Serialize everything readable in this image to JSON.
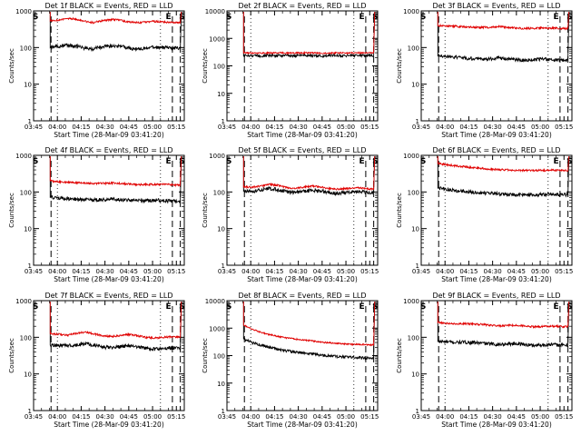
{
  "chart_data": [
    {
      "type": "line",
      "title": "Det 1f BLACK = Events, RED = LLD",
      "ylabel": "Counts/sec",
      "xlabel": "Start Time (28-Mar-09 03:41:20)",
      "xticks": [
        "03:45",
        "04:00",
        "04:15",
        "04:30",
        "04:45",
        "05:00",
        "05:15"
      ],
      "yticks": [
        "1",
        "10",
        "100",
        "1000"
      ],
      "ylim": [
        1,
        1000
      ],
      "y_scale": "log",
      "markers": [
        "S",
        "E",
        "S"
      ],
      "series": [
        {
          "color": "#000000",
          "values": [
            105,
            108,
            115,
            110,
            95,
            92,
            105,
            112,
            110,
            98,
            90,
            95,
            102,
            100,
            98,
            95
          ]
        },
        {
          "color": "#e00000",
          "values": [
            550,
            560,
            620,
            600,
            520,
            480,
            540,
            580,
            570,
            500,
            480,
            490,
            520,
            500,
            480,
            470
          ]
        }
      ]
    },
    {
      "type": "line",
      "title": "Det 2f BLACK = Events, RED = LLD",
      "ylabel": "Counts/sec",
      "xlabel": "Start Time (28-Mar-09 03:41:20)",
      "xticks": [
        "03:45",
        "04:00",
        "04:15",
        "04:30",
        "04:45",
        "05:00",
        "05:15"
      ],
      "yticks": [
        "1",
        "10",
        "100",
        "1000"
      ],
      "ylim": [
        1,
        10000
      ],
      "y_scale": "log",
      "markers": [
        "S",
        "E",
        "S"
      ],
      "series": [
        {
          "color": "#000000",
          "values": [
            240,
            235,
            230,
            240,
            238,
            232,
            236,
            240,
            234,
            230,
            238,
            236,
            232,
            240,
            236,
            234
          ]
        },
        {
          "color": "#e00000",
          "values": [
            300,
            296,
            292,
            298,
            300,
            294,
            296,
            300,
            296,
            292,
            298,
            296,
            294,
            300,
            296,
            294
          ]
        }
      ]
    },
    {
      "type": "line",
      "title": "Det 3f BLACK = Events, RED = LLD",
      "ylabel": "Counts/sec",
      "xlabel": "Start Time (28-Mar-09 03:41:20)",
      "xticks": [
        "03:45",
        "04:00",
        "04:15",
        "04:30",
        "04:45",
        "05:00",
        "05:15"
      ],
      "yticks": [
        "1",
        "10",
        "100",
        "1000"
      ],
      "ylim": [
        1,
        1000
      ],
      "y_scale": "log",
      "markers": [
        "S",
        "E",
        "S"
      ],
      "series": [
        {
          "color": "#000000",
          "values": [
            60,
            58,
            55,
            52,
            50,
            48,
            50,
            52,
            50,
            47,
            45,
            46,
            48,
            47,
            46,
            45
          ]
        },
        {
          "color": "#e00000",
          "values": [
            400,
            390,
            380,
            370,
            360,
            355,
            360,
            370,
            360,
            345,
            330,
            335,
            345,
            340,
            335,
            330
          ]
        }
      ]
    },
    {
      "type": "line",
      "title": "Det 4f BLACK = Events, RED = LLD",
      "ylabel": "Counts/sec",
      "xlabel": "Start Time (28-Mar-09 03:41:20)",
      "xticks": [
        "03:45",
        "04:00",
        "04:15",
        "04:30",
        "04:45",
        "05:00",
        "05:15"
      ],
      "yticks": [
        "1",
        "10",
        "100",
        "1000"
      ],
      "ylim": [
        1,
        1000
      ],
      "y_scale": "log",
      "markers": [
        "S",
        "E",
        "S"
      ],
      "series": [
        {
          "color": "#000000",
          "values": [
            72,
            68,
            66,
            64,
            62,
            60,
            62,
            64,
            62,
            60,
            58,
            58,
            60,
            58,
            57,
            56
          ]
        },
        {
          "color": "#e00000",
          "values": [
            200,
            190,
            185,
            180,
            175,
            170,
            172,
            175,
            172,
            165,
            160,
            160,
            162,
            160,
            158,
            155
          ]
        }
      ]
    },
    {
      "type": "line",
      "title": "Det 5f BLACK = Events, RED = LLD",
      "ylabel": "Counts/sec",
      "xlabel": "Start Time (28-Mar-09 03:41:20)",
      "xticks": [
        "03:45",
        "04:00",
        "04:15",
        "04:30",
        "04:45",
        "05:00",
        "05:15"
      ],
      "yticks": [
        "1",
        "10",
        "100",
        "1000"
      ],
      "ylim": [
        1,
        1000
      ],
      "y_scale": "log",
      "markers": [
        "S",
        "E",
        "S"
      ],
      "series": [
        {
          "color": "#000000",
          "values": [
            110,
            105,
            115,
            125,
            115,
            100,
            98,
            105,
            112,
            105,
            95,
            92,
            100,
            104,
            100,
            96
          ]
        },
        {
          "color": "#e00000",
          "values": [
            140,
            135,
            145,
            160,
            150,
            130,
            125,
            135,
            145,
            135,
            122,
            118,
            125,
            130,
            125,
            120
          ]
        }
      ]
    },
    {
      "type": "line",
      "title": "Det 6f BLACK = Events, RED = LLD",
      "ylabel": "Counts/sec",
      "xlabel": "Start Time (28-Mar-09 03:41:20)",
      "xticks": [
        "03:45",
        "04:00",
        "04:15",
        "04:30",
        "04:45",
        "05:00",
        "05:15"
      ],
      "yticks": [
        "1",
        "10",
        "100",
        "1000"
      ],
      "ylim": [
        1,
        1000
      ],
      "y_scale": "log",
      "markers": [
        "S",
        "E",
        "S"
      ],
      "series": [
        {
          "color": "#000000",
          "values": [
            130,
            120,
            110,
            105,
            100,
            95,
            92,
            90,
            88,
            85,
            84,
            84,
            85,
            86,
            85,
            84
          ]
        },
        {
          "color": "#e00000",
          "values": [
            600,
            560,
            520,
            490,
            460,
            440,
            420,
            410,
            400,
            395,
            390,
            388,
            390,
            392,
            390,
            388
          ]
        }
      ]
    },
    {
      "type": "line",
      "title": "Det 7f BLACK = Events, RED = LLD",
      "ylabel": "Counts/sec",
      "xlabel": "Start Time (28-Mar-09 03:41:20)",
      "xticks": [
        "03:45",
        "04:00",
        "04:15",
        "04:30",
        "04:45",
        "05:00",
        "05:15"
      ],
      "yticks": [
        "1",
        "10",
        "100",
        "1000"
      ],
      "ylim": [
        1,
        1000
      ],
      "y_scale": "log",
      "markers": [
        "S",
        "E",
        "S"
      ],
      "series": [
        {
          "color": "#000000",
          "values": [
            62,
            60,
            58,
            62,
            68,
            62,
            55,
            52,
            55,
            60,
            55,
            50,
            48,
            50,
            52,
            50
          ]
        },
        {
          "color": "#e00000",
          "values": [
            125,
            120,
            115,
            125,
            140,
            125,
            110,
            105,
            110,
            120,
            110,
            100,
            95,
            100,
            104,
            100
          ]
        }
      ]
    },
    {
      "type": "line",
      "title": "Det 8f BLACK = Events, RED = LLD",
      "ylabel": "Counts/sec",
      "xlabel": "Start Time (28-Mar-09 03:41:20)",
      "xticks": [
        "03:45",
        "04:00",
        "04:15",
        "04:30",
        "04:45",
        "05:00",
        "05:15"
      ],
      "yticks": [
        "1",
        "10",
        "100",
        "1000"
      ],
      "ylim": [
        1,
        10000
      ],
      "y_scale": "log",
      "markers": [
        "S",
        "E",
        "S"
      ],
      "series": [
        {
          "color": "#000000",
          "values": [
            400,
            300,
            240,
            200,
            170,
            150,
            135,
            125,
            115,
            105,
            98,
            92,
            88,
            85,
            82,
            80
          ]
        },
        {
          "color": "#e00000",
          "values": [
            1300,
            900,
            700,
            580,
            500,
            440,
            400,
            370,
            340,
            310,
            290,
            275,
            262,
            255,
            250,
            245
          ]
        }
      ]
    },
    {
      "type": "line",
      "title": "Det 9f BLACK = Events, RED = LLD",
      "ylabel": "Counts/sec",
      "xlabel": "Start Time (28-Mar-09 03:41:20)",
      "xticks": [
        "03:45",
        "04:00",
        "04:15",
        "04:30",
        "04:45",
        "05:00",
        "05:15"
      ],
      "yticks": [
        "1",
        "10",
        "100",
        "1000"
      ],
      "ylim": [
        1,
        1000
      ],
      "y_scale": "log",
      "markers": [
        "S",
        "E",
        "S"
      ],
      "series": [
        {
          "color": "#000000",
          "values": [
            78,
            75,
            72,
            74,
            72,
            70,
            66,
            64,
            66,
            68,
            64,
            60,
            62,
            64,
            62,
            60
          ]
        },
        {
          "color": "#e00000",
          "values": [
            250,
            240,
            230,
            235,
            230,
            225,
            215,
            205,
            210,
            215,
            205,
            195,
            198,
            202,
            198,
            195
          ]
        }
      ]
    }
  ]
}
